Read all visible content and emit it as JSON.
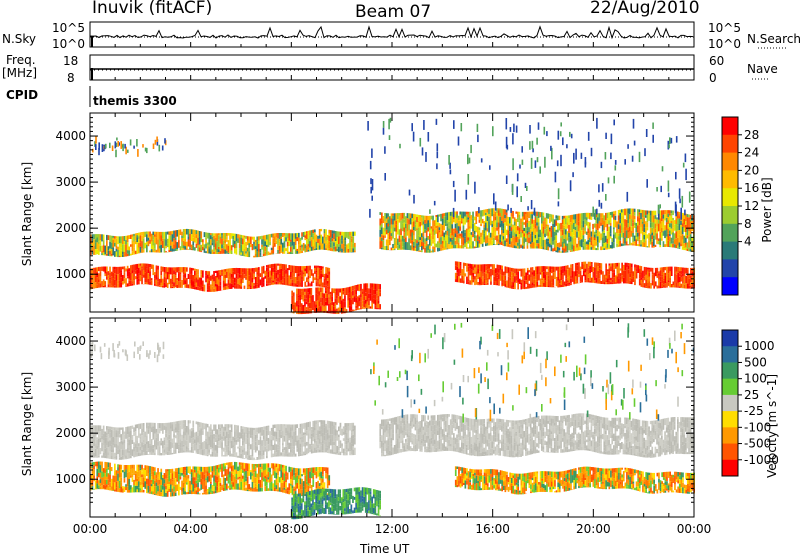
{
  "header": {
    "station": "Inuvik (fitACF)",
    "beam": "Beam 07",
    "date": "22/Aug/2010"
  },
  "top_panels": {
    "nsky_label": "N.Sky",
    "nsky_ticks": [
      "10^5",
      "10^0"
    ],
    "nsearch_label": "N.Search",
    "nsearch_ticks": [
      "10^5",
      "10^0"
    ],
    "freq_label": "Freq.",
    "freq_unit": "[MHz]",
    "freq_ticks": [
      "18",
      "8"
    ],
    "nave_label": "Nave",
    "nave_ticks": [
      "60",
      "0"
    ],
    "cpid_label": "CPID",
    "cpid_value": "themis 3300"
  },
  "power_colorbar": {
    "label": "Power [dB]",
    "ticks": [
      "28",
      "24",
      "20",
      "16",
      "12",
      "8",
      "4"
    ],
    "colors": [
      "#ff0000",
      "#ff4400",
      "#ff8800",
      "#ffbb00",
      "#e8e800",
      "#9ccc30",
      "#52a35a",
      "#2a7a78",
      "#2244aa",
      "#0000ff"
    ]
  },
  "velocity_colorbar": {
    "label": "Velocity [m s^-1]",
    "ticks": [
      "1000",
      "500",
      "100",
      "25",
      "-25",
      "-100",
      "-500",
      "-1000"
    ],
    "colors": [
      "#1a3aa8",
      "#2a6e9a",
      "#3a9a60",
      "#66cc33",
      "#c8c8c0",
      "#ffdd00",
      "#ff9900",
      "#ff5500",
      "#ff0000"
    ]
  },
  "x_axis": {
    "label": "Time UT",
    "ticks": [
      "00:00",
      "04:00",
      "08:00",
      "12:00",
      "16:00",
      "20:00",
      "00:00"
    ]
  },
  "chart_data": [
    {
      "type": "heatmap",
      "title": "Beam 07",
      "xlabel": "Time UT",
      "ylabel": "Slant Range [km]",
      "xlim": [
        0,
        24
      ],
      "ylim": [
        180,
        4500
      ],
      "yticks": [
        "1000",
        "2000",
        "3000",
        "4000"
      ],
      "quantity": "Power [dB]",
      "bands": [
        {
          "t0": 0,
          "t1": 10.5,
          "r0": 1450,
          "r1": 1900,
          "level": "medium"
        },
        {
          "t0": 0,
          "t1": 9.5,
          "r0": 700,
          "r1": 1150,
          "level": "high"
        },
        {
          "t0": 8.0,
          "t1": 11.5,
          "r0": 200,
          "r1": 750,
          "level": "high"
        },
        {
          "t0": 11.5,
          "t1": 24,
          "r0": 1550,
          "r1": 2350,
          "level": "medium"
        },
        {
          "t0": 14.5,
          "t1": 24,
          "r0": 750,
          "r1": 1200,
          "level": "high"
        }
      ]
    },
    {
      "type": "heatmap",
      "xlabel": "Time UT",
      "ylabel": "Slant Range [km]",
      "xlim": [
        0,
        24
      ],
      "ylim": [
        180,
        4500
      ],
      "yticks": [
        "1000",
        "2000",
        "3000",
        "4000"
      ],
      "quantity": "Velocity [m s^-1]",
      "bands": [
        {
          "t0": 0,
          "t1": 10.5,
          "r0": 1500,
          "r1": 2200,
          "level": "ground"
        },
        {
          "t0": 11.5,
          "t1": 24,
          "r0": 1550,
          "r1": 2350,
          "level": "ground"
        },
        {
          "t0": 0,
          "t1": 9.5,
          "r0": 700,
          "r1": 1300,
          "level": "negative"
        },
        {
          "t0": 8.0,
          "t1": 11.5,
          "r0": 200,
          "r1": 750,
          "level": "positive"
        },
        {
          "t0": 14.5,
          "t1": 24,
          "r0": 750,
          "r1": 1200,
          "level": "negative"
        }
      ]
    }
  ]
}
